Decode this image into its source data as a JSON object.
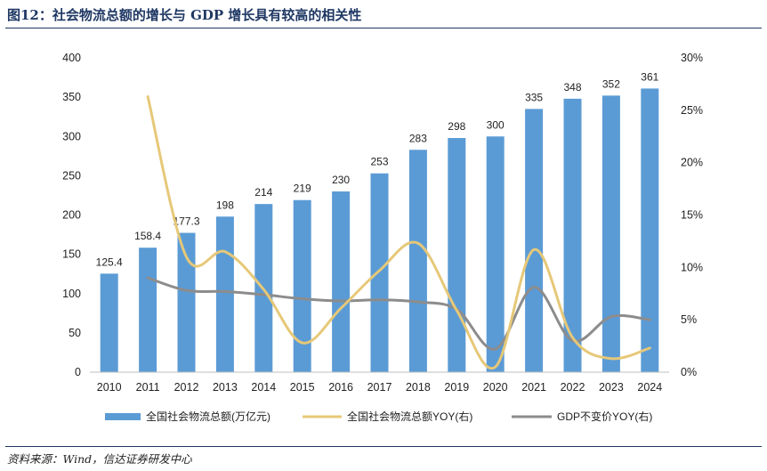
{
  "figure": {
    "title": "图12：社会物流总额的增长与 GDP 增长具有较高的相关性",
    "source": "资料来源：Wind，信达证券研发中心"
  },
  "colors": {
    "bar": "#5b9bd5",
    "line_logistics_yoy": "#e6c878",
    "line_gdp_yoy": "#8c8c8c",
    "title": "#1f3864"
  },
  "chart_data": {
    "type": "bar",
    "categories": [
      "2010",
      "2011",
      "2012",
      "2013",
      "2014",
      "2015",
      "2016",
      "2017",
      "2018",
      "2019",
      "2020",
      "2021",
      "2022",
      "2023",
      "2024"
    ],
    "left_axis": {
      "ylim": [
        0,
        400
      ],
      "ticks": [
        "0",
        "50",
        "100",
        "150",
        "200",
        "250",
        "300",
        "350",
        "400"
      ]
    },
    "right_axis": {
      "ylim": [
        0,
        0.3
      ],
      "ticks": [
        "0%",
        "5%",
        "10%",
        "15%",
        "20%",
        "25%",
        "30%"
      ]
    },
    "series": [
      {
        "name": "全国社会物流总额(万亿元)",
        "type": "bar",
        "axis": "left",
        "values": [
          125.4,
          158.4,
          177.3,
          198,
          214,
          219,
          230,
          253,
          283,
          298,
          300,
          335,
          348,
          352,
          361
        ],
        "labels": [
          "125.4",
          "158.4",
          "177.3",
          "198",
          "214",
          "219",
          "230",
          "253",
          "283",
          "298",
          "300",
          "335",
          "348",
          "352",
          "361"
        ]
      },
      {
        "name": "全国社会物流总额YOY(右)",
        "type": "line",
        "axis": "right",
        "values": [
          null,
          0.263,
          0.11,
          0.115,
          0.079,
          0.028,
          0.061,
          0.097,
          0.123,
          0.059,
          0.005,
          0.117,
          0.033,
          0.013,
          0.023
        ]
      },
      {
        "name": "GDP不变价YOY(右)",
        "type": "line",
        "axis": "right",
        "values": [
          null,
          0.09,
          0.078,
          0.077,
          0.074,
          0.07,
          0.068,
          0.069,
          0.067,
          0.06,
          0.022,
          0.081,
          0.03,
          0.053,
          0.05
        ]
      }
    ],
    "grid": false,
    "legend": "bottom"
  }
}
